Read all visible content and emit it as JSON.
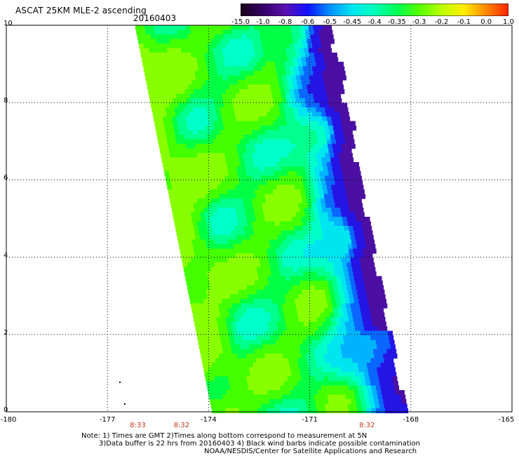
{
  "header": {
    "title": "ASCAT 25KM MLE-2 ascending",
    "date": "20160403"
  },
  "colorbar": {
    "labels": [
      "-15.0",
      "-1.0",
      "-0.8",
      "-0.6",
      "-0.5",
      "-0.45",
      "-0.4",
      "-0.35",
      "-0.3",
      "-0.2",
      "-0.1",
      "0.0",
      "1.0"
    ],
    "colors": [
      "#1a0016",
      "#330066",
      "#5a11b0",
      "#1010ff",
      "#0090ff",
      "#00e5f0",
      "#00ffbb",
      "#00ff55",
      "#55ff00",
      "#bbff00",
      "#ffee00",
      "#ff8800",
      "#ff2200"
    ]
  },
  "map": {
    "y_labels": [
      "10",
      "8",
      "6",
      "4",
      "2",
      "0"
    ],
    "x_labels": [
      "-180",
      "-177",
      "-174",
      "-171",
      "-168",
      "-165"
    ],
    "times": [
      {
        "label": "8:33",
        "lon": -176.1
      },
      {
        "label": "8:32",
        "lon": -174.8
      },
      {
        "label": "8:32",
        "lon": -169.3
      }
    ],
    "lat_range": [
      0,
      10
    ],
    "lon_range": [
      -180,
      -165
    ],
    "grid_lats": [
      2,
      4,
      6,
      8,
      10
    ],
    "grid_lons": [
      -177,
      -174,
      -171,
      -168
    ]
  },
  "notes": {
    "line1": "Note: 1) Times are GMT 2)Times along bottom correspond to measurement at 5N",
    "line2": "3)Data buffer is 22 hrs from 20160403 4) Black wind barbs indicate possible contamination",
    "line3": "NOAA/NESDIS/Center for Satellite Applications and Research"
  }
}
